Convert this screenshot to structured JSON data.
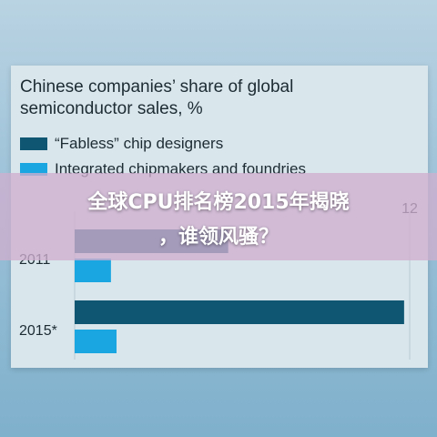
{
  "chart_data": {
    "type": "bar",
    "title": "Chinese companies’ share of global semiconductor sales, %",
    "title_lines": [
      "Chinese companies’ share of global",
      "semiconductor sales, %"
    ],
    "categories": [
      "2011",
      "2015*"
    ],
    "series": [
      {
        "name": "“Fabless” chip designers",
        "values": [
          5.5,
          11.8
        ],
        "color": "#0f5673"
      },
      {
        "name": "Integrated chipmakers and foundries",
        "values": [
          1.3,
          1.5
        ],
        "color": "#1aa6e0"
      }
    ],
    "xlim": [
      0,
      12
    ],
    "ticks": [
      "12"
    ],
    "grid": true
  },
  "overlay": {
    "line1": "全球CPU排名榜2015年揭晓",
    "line2": "，谁领风骚？"
  }
}
